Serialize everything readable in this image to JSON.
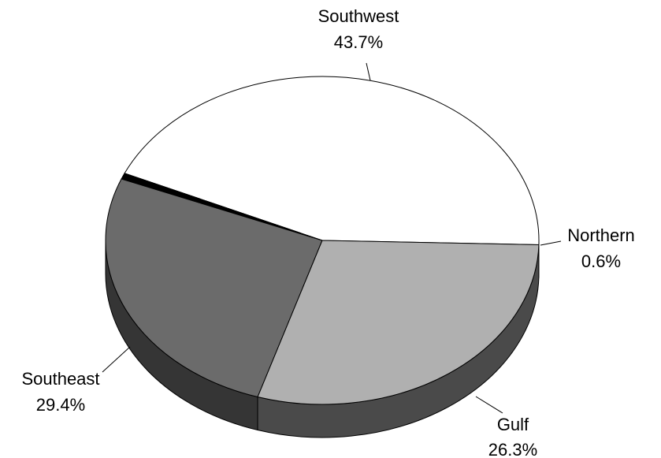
{
  "chart_data": {
    "type": "pie",
    "style": "3d",
    "title": "",
    "slices": [
      {
        "label": "Southwest",
        "value": 43.7,
        "display": "43.7%",
        "color": "#ffffff"
      },
      {
        "label": "Northern",
        "value": 0.6,
        "display": "0.6%",
        "color": "#000000"
      },
      {
        "label": "Gulf",
        "value": 26.3,
        "display": "26.3%",
        "color": "#6b6b6b"
      },
      {
        "label": "Southeast",
        "value": 29.4,
        "display": "29.4%",
        "color": "#b0b0b0"
      }
    ],
    "legend": "none",
    "labels": "outside with leader lines"
  }
}
